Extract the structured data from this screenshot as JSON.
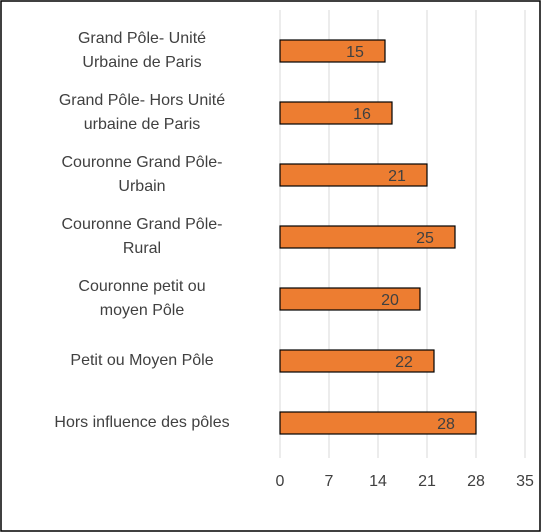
{
  "chart_data": {
    "type": "bar",
    "orientation": "horizontal",
    "categories": [
      "Grand Pôle- Unité\nUrbaine de Paris",
      "Grand Pôle- Hors Unité\nurbaine de Paris",
      "Couronne Grand Pôle-\nUrbain",
      "Couronne Grand Pôle-\nRural",
      "Couronne petit ou\nmoyen Pôle",
      "Petit ou Moyen Pôle",
      "Hors influence des pôles"
    ],
    "values": [
      15,
      16,
      21,
      25,
      20,
      22,
      28
    ],
    "color": "#ed7d31",
    "xlim": [
      0,
      35
    ],
    "xticks": [
      0,
      7,
      14,
      21,
      28,
      35
    ],
    "grid": true
  }
}
